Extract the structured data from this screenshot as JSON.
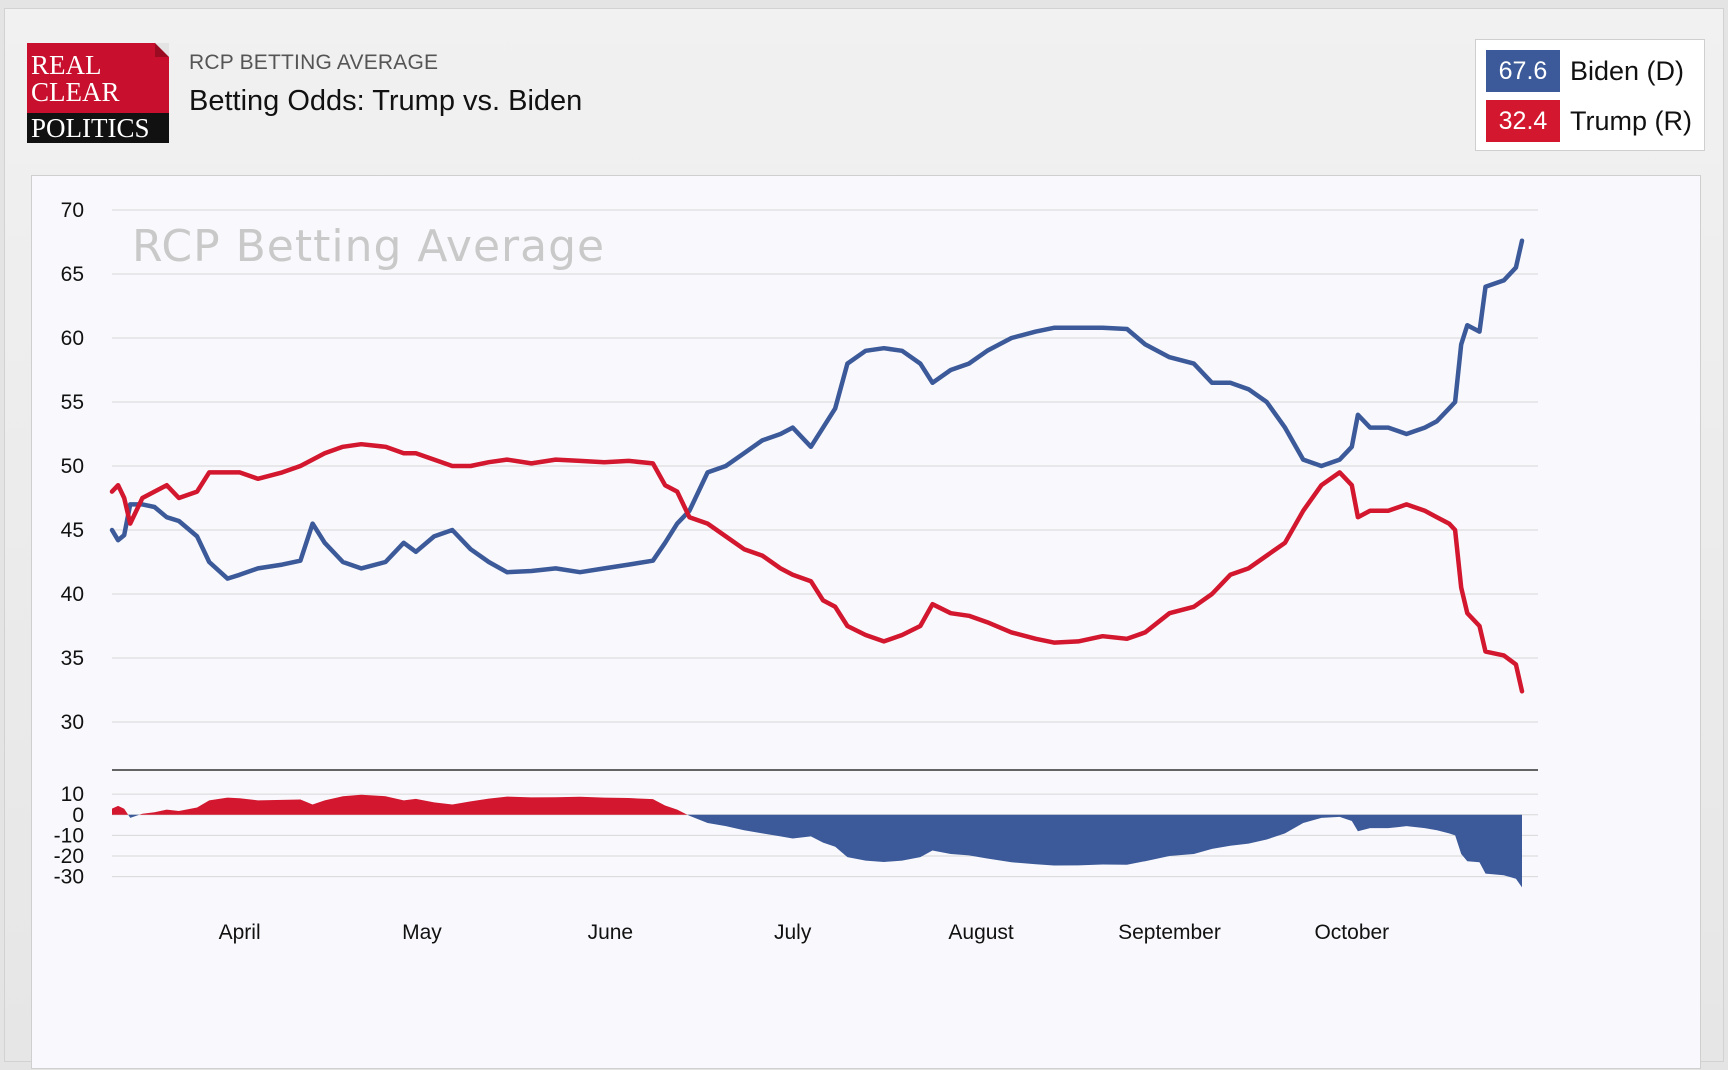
{
  "header": {
    "logo_lines": [
      "REAL",
      "CLEAR",
      "POLITICS"
    ],
    "kicker": "RCP BETTING AVERAGE",
    "title": "Betting Odds: Trump vs. Biden"
  },
  "legend": [
    {
      "value": "67.6",
      "name": "Biden (D)",
      "color": "#3c5a99"
    },
    {
      "value": "32.4",
      "name": "Trump (R)",
      "color": "#d2172e"
    }
  ],
  "chart_data": {
    "type": "line",
    "watermark": "RCP Betting Average",
    "ylim": [
      30,
      70
    ],
    "y_ticks": [
      "70",
      "65",
      "60",
      "55",
      "50",
      "45",
      "40",
      "35",
      "30"
    ],
    "x_labels": [
      "April",
      "May",
      "June",
      "July",
      "August",
      "September",
      "October"
    ],
    "x_range": [
      "2020-03-11",
      "2020-10-23"
    ],
    "grid": true,
    "series": [
      {
        "name": "Biden (D)",
        "color": "#3c5a99",
        "points": [
          [
            "2020-03-11",
            45.0
          ],
          [
            "2020-03-12",
            44.2
          ],
          [
            "2020-03-13",
            44.6
          ],
          [
            "2020-03-14",
            47.0
          ],
          [
            "2020-03-16",
            47.0
          ],
          [
            "2020-03-18",
            46.8
          ],
          [
            "2020-03-20",
            46.0
          ],
          [
            "2020-03-22",
            45.7
          ],
          [
            "2020-03-25",
            44.5
          ],
          [
            "2020-03-27",
            42.5
          ],
          [
            "2020-03-30",
            41.2
          ],
          [
            "2020-04-01",
            41.5
          ],
          [
            "2020-04-04",
            42.0
          ],
          [
            "2020-04-08",
            42.3
          ],
          [
            "2020-04-11",
            42.6
          ],
          [
            "2020-04-13",
            45.5
          ],
          [
            "2020-04-15",
            44.0
          ],
          [
            "2020-04-18",
            42.5
          ],
          [
            "2020-04-21",
            42.0
          ],
          [
            "2020-04-25",
            42.5
          ],
          [
            "2020-04-28",
            44.0
          ],
          [
            "2020-04-30",
            43.3
          ],
          [
            "2020-05-03",
            44.5
          ],
          [
            "2020-05-06",
            45.0
          ],
          [
            "2020-05-09",
            43.5
          ],
          [
            "2020-05-12",
            42.5
          ],
          [
            "2020-05-15",
            41.7
          ],
          [
            "2020-05-19",
            41.8
          ],
          [
            "2020-05-23",
            42.0
          ],
          [
            "2020-05-27",
            41.7
          ],
          [
            "2020-05-31",
            42.0
          ],
          [
            "2020-06-04",
            42.3
          ],
          [
            "2020-06-08",
            42.6
          ],
          [
            "2020-06-10",
            44.0
          ],
          [
            "2020-06-12",
            45.5
          ],
          [
            "2020-06-14",
            46.5
          ],
          [
            "2020-06-17",
            49.5
          ],
          [
            "2020-06-20",
            50.0
          ],
          [
            "2020-06-23",
            51.0
          ],
          [
            "2020-06-26",
            52.0
          ],
          [
            "2020-06-29",
            52.5
          ],
          [
            "2020-07-01",
            53.0
          ],
          [
            "2020-07-04",
            51.5
          ],
          [
            "2020-07-06",
            53.0
          ],
          [
            "2020-07-08",
            54.5
          ],
          [
            "2020-07-10",
            58.0
          ],
          [
            "2020-07-13",
            59.0
          ],
          [
            "2020-07-16",
            59.2
          ],
          [
            "2020-07-19",
            59.0
          ],
          [
            "2020-07-22",
            58.0
          ],
          [
            "2020-07-24",
            56.5
          ],
          [
            "2020-07-27",
            57.5
          ],
          [
            "2020-07-30",
            58.0
          ],
          [
            "2020-08-02",
            59.0
          ],
          [
            "2020-08-06",
            60.0
          ],
          [
            "2020-08-10",
            60.5
          ],
          [
            "2020-08-13",
            60.8
          ],
          [
            "2020-08-17",
            60.8
          ],
          [
            "2020-08-21",
            60.8
          ],
          [
            "2020-08-25",
            60.7
          ],
          [
            "2020-08-28",
            59.5
          ],
          [
            "2020-09-01",
            58.5
          ],
          [
            "2020-09-05",
            58.0
          ],
          [
            "2020-09-08",
            56.5
          ],
          [
            "2020-09-11",
            56.5
          ],
          [
            "2020-09-14",
            56.0
          ],
          [
            "2020-09-17",
            55.0
          ],
          [
            "2020-09-20",
            53.0
          ],
          [
            "2020-09-23",
            50.5
          ],
          [
            "2020-09-26",
            50.0
          ],
          [
            "2020-09-29",
            50.5
          ],
          [
            "2020-10-01",
            51.5
          ],
          [
            "2020-10-02",
            54.0
          ],
          [
            "2020-10-04",
            53.0
          ],
          [
            "2020-10-07",
            53.0
          ],
          [
            "2020-10-10",
            52.5
          ],
          [
            "2020-10-13",
            53.0
          ],
          [
            "2020-10-15",
            53.5
          ],
          [
            "2020-10-17",
            54.5
          ],
          [
            "2020-10-18",
            55.0
          ],
          [
            "2020-10-19",
            59.5
          ],
          [
            "2020-10-20",
            61.0
          ],
          [
            "2020-10-22",
            60.5
          ],
          [
            "2020-10-23",
            64.0
          ],
          [
            "2020-10-26",
            64.5
          ],
          [
            "2020-10-28",
            65.5
          ],
          [
            "2020-10-29",
            67.6
          ]
        ]
      },
      {
        "name": "Trump (R)",
        "color": "#d2172e",
        "points": [
          [
            "2020-03-11",
            48.0
          ],
          [
            "2020-03-12",
            48.5
          ],
          [
            "2020-03-13",
            47.5
          ],
          [
            "2020-03-14",
            45.5
          ],
          [
            "2020-03-16",
            47.5
          ],
          [
            "2020-03-18",
            48.0
          ],
          [
            "2020-03-20",
            48.5
          ],
          [
            "2020-03-22",
            47.5
          ],
          [
            "2020-03-25",
            48.0
          ],
          [
            "2020-03-27",
            49.5
          ],
          [
            "2020-03-30",
            49.5
          ],
          [
            "2020-04-01",
            49.5
          ],
          [
            "2020-04-04",
            49.0
          ],
          [
            "2020-04-08",
            49.5
          ],
          [
            "2020-04-11",
            50.0
          ],
          [
            "2020-04-13",
            50.5
          ],
          [
            "2020-04-15",
            51.0
          ],
          [
            "2020-04-18",
            51.5
          ],
          [
            "2020-04-21",
            51.7
          ],
          [
            "2020-04-25",
            51.5
          ],
          [
            "2020-04-28",
            51.0
          ],
          [
            "2020-04-30",
            51.0
          ],
          [
            "2020-05-03",
            50.5
          ],
          [
            "2020-05-06",
            50.0
          ],
          [
            "2020-05-09",
            50.0
          ],
          [
            "2020-05-12",
            50.3
          ],
          [
            "2020-05-15",
            50.5
          ],
          [
            "2020-05-19",
            50.2
          ],
          [
            "2020-05-23",
            50.5
          ],
          [
            "2020-05-27",
            50.4
          ],
          [
            "2020-05-31",
            50.3
          ],
          [
            "2020-06-04",
            50.4
          ],
          [
            "2020-06-08",
            50.2
          ],
          [
            "2020-06-10",
            48.5
          ],
          [
            "2020-06-12",
            48.0
          ],
          [
            "2020-06-14",
            46.0
          ],
          [
            "2020-06-17",
            45.5
          ],
          [
            "2020-06-20",
            44.5
          ],
          [
            "2020-06-23",
            43.5
          ],
          [
            "2020-06-26",
            43.0
          ],
          [
            "2020-06-29",
            42.0
          ],
          [
            "2020-07-01",
            41.5
          ],
          [
            "2020-07-04",
            41.0
          ],
          [
            "2020-07-06",
            39.5
          ],
          [
            "2020-07-08",
            39.0
          ],
          [
            "2020-07-10",
            37.5
          ],
          [
            "2020-07-13",
            36.8
          ],
          [
            "2020-07-16",
            36.3
          ],
          [
            "2020-07-19",
            36.8
          ],
          [
            "2020-07-22",
            37.5
          ],
          [
            "2020-07-24",
            39.2
          ],
          [
            "2020-07-27",
            38.5
          ],
          [
            "2020-07-30",
            38.3
          ],
          [
            "2020-08-02",
            37.8
          ],
          [
            "2020-08-06",
            37.0
          ],
          [
            "2020-08-10",
            36.5
          ],
          [
            "2020-08-13",
            36.2
          ],
          [
            "2020-08-17",
            36.3
          ],
          [
            "2020-08-21",
            36.7
          ],
          [
            "2020-08-25",
            36.5
          ],
          [
            "2020-08-28",
            37.0
          ],
          [
            "2020-09-01",
            38.5
          ],
          [
            "2020-09-05",
            39.0
          ],
          [
            "2020-09-08",
            40.0
          ],
          [
            "2020-09-11",
            41.5
          ],
          [
            "2020-09-14",
            42.0
          ],
          [
            "2020-09-17",
            43.0
          ],
          [
            "2020-09-20",
            44.0
          ],
          [
            "2020-09-23",
            46.5
          ],
          [
            "2020-09-26",
            48.5
          ],
          [
            "2020-09-29",
            49.5
          ],
          [
            "2020-10-01",
            48.5
          ],
          [
            "2020-10-02",
            46.0
          ],
          [
            "2020-10-04",
            46.5
          ],
          [
            "2020-10-07",
            46.5
          ],
          [
            "2020-10-10",
            47.0
          ],
          [
            "2020-10-13",
            46.5
          ],
          [
            "2020-10-15",
            46.0
          ],
          [
            "2020-10-17",
            45.5
          ],
          [
            "2020-10-18",
            45.0
          ],
          [
            "2020-10-19",
            40.5
          ],
          [
            "2020-10-20",
            38.5
          ],
          [
            "2020-10-22",
            37.5
          ],
          [
            "2020-10-23",
            35.5
          ],
          [
            "2020-10-26",
            35.2
          ],
          [
            "2020-10-28",
            34.5
          ],
          [
            "2020-10-29",
            32.4
          ]
        ]
      }
    ],
    "spread_panel": {
      "type": "area",
      "ylim": [
        -35,
        12
      ],
      "y_ticks": [
        "10",
        "0",
        "-10",
        "-20",
        "-30"
      ],
      "positive_color": "#d2172e",
      "negative_color": "#3c5a99"
    }
  }
}
